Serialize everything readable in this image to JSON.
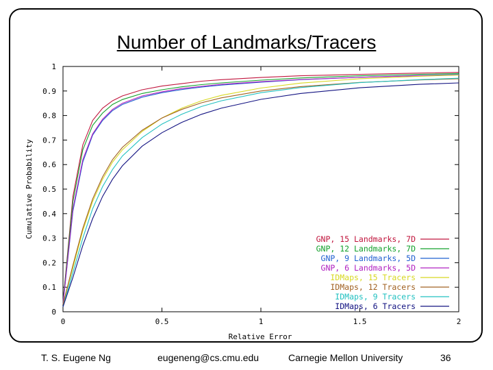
{
  "slide": {
    "title": "Number of Landmarks/Tracers",
    "footer": {
      "author": "T. S. Eugene Ng",
      "email": "eugeneng@cs.cmu.edu",
      "affiliation": "Carnegie Mellon University",
      "page": "36"
    }
  },
  "chart_data": {
    "type": "line",
    "title": "",
    "xlabel": "Relative Error",
    "ylabel": "Cumulative Probability",
    "xlim": [
      0,
      2
    ],
    "ylim": [
      0,
      1
    ],
    "xticks": [
      "0",
      "0.5",
      "1",
      "1.5",
      "2"
    ],
    "yticks": [
      "0",
      "0.1",
      "0.2",
      "0.3",
      "0.4",
      "0.5",
      "0.6",
      "0.7",
      "0.8",
      "0.9",
      "1"
    ],
    "grid": false,
    "legend_position": "bottom-right",
    "x": [
      0,
      0.05,
      0.1,
      0.15,
      0.2,
      0.25,
      0.3,
      0.4,
      0.5,
      0.6,
      0.7,
      0.8,
      1.0,
      1.2,
      1.5,
      1.8,
      2.0
    ],
    "series": [
      {
        "name": "GNP, 15 Landmarks, 7D",
        "color": "#c0143c",
        "values": [
          0.04,
          0.47,
          0.68,
          0.78,
          0.83,
          0.86,
          0.88,
          0.905,
          0.92,
          0.93,
          0.94,
          0.946,
          0.955,
          0.962,
          0.968,
          0.973,
          0.976
        ]
      },
      {
        "name": "GNP, 12 Landmarks, 7D",
        "color": "#11a02a",
        "values": [
          0.04,
          0.45,
          0.66,
          0.76,
          0.81,
          0.845,
          0.865,
          0.89,
          0.905,
          0.917,
          0.926,
          0.933,
          0.944,
          0.953,
          0.962,
          0.968,
          0.971
        ]
      },
      {
        "name": "GNP, 9 Landmarks, 5D",
        "color": "#1f5fd0",
        "values": [
          0.03,
          0.41,
          0.61,
          0.72,
          0.78,
          0.82,
          0.845,
          0.875,
          0.893,
          0.906,
          0.916,
          0.924,
          0.936,
          0.946,
          0.956,
          0.963,
          0.967
        ]
      },
      {
        "name": "GNP, 6 Landmarks, 5D",
        "color": "#b020c0",
        "values": [
          0.03,
          0.42,
          0.62,
          0.725,
          0.785,
          0.825,
          0.85,
          0.88,
          0.897,
          0.91,
          0.919,
          0.927,
          0.938,
          0.947,
          0.956,
          0.962,
          0.965
        ]
      },
      {
        "name": "IDMaps, 15 Tracers",
        "color": "#d8d820",
        "values": [
          0.03,
          0.18,
          0.33,
          0.45,
          0.54,
          0.61,
          0.66,
          0.735,
          0.79,
          0.83,
          0.86,
          0.882,
          0.912,
          0.932,
          0.95,
          0.96,
          0.965
        ]
      },
      {
        "name": "IDMaps, 12 Tracers",
        "color": "#a06020",
        "values": [
          0.03,
          0.19,
          0.34,
          0.46,
          0.55,
          0.62,
          0.67,
          0.74,
          0.79,
          0.825,
          0.852,
          0.872,
          0.9,
          0.918,
          0.935,
          0.945,
          0.95
        ]
      },
      {
        "name": "IDMaps, 9 Tracers",
        "color": "#20c0c0",
        "values": [
          0.02,
          0.16,
          0.3,
          0.42,
          0.51,
          0.58,
          0.635,
          0.71,
          0.765,
          0.805,
          0.837,
          0.86,
          0.893,
          0.914,
          0.934,
          0.946,
          0.952
        ]
      },
      {
        "name": "IDMaps, 6 Tracers",
        "color": "#101080",
        "values": [
          0.02,
          0.14,
          0.27,
          0.38,
          0.47,
          0.54,
          0.595,
          0.675,
          0.73,
          0.772,
          0.805,
          0.83,
          0.866,
          0.89,
          0.913,
          0.927,
          0.933
        ]
      }
    ]
  }
}
